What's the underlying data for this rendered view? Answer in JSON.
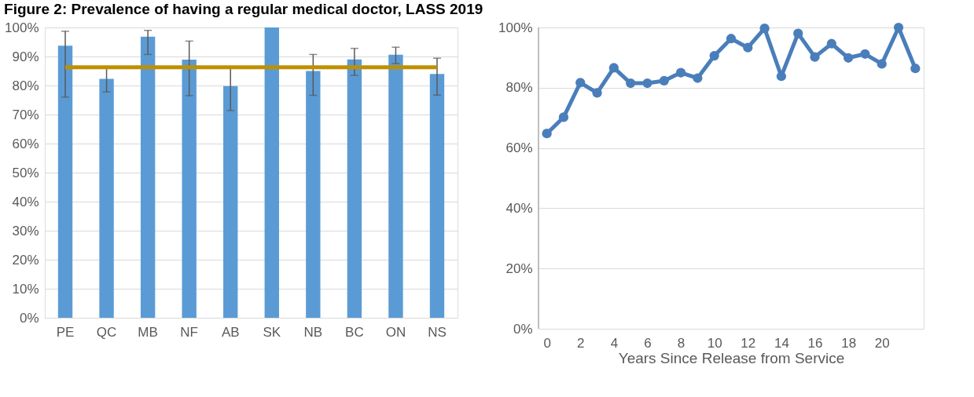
{
  "chart_data": [
    {
      "type": "bar",
      "title": "Figure 2: Prevalence of having a regular medical doctor, LASS 2019",
      "categories": [
        "PE",
        "QC",
        "MB",
        "NF",
        "AB",
        "SK",
        "NB",
        "BC",
        "ON",
        "NS"
      ],
      "series": [
        {
          "color": "#5b9bd5",
          "values": [
            93.7,
            82.3,
            96.8,
            88.9,
            79.8,
            100,
            85,
            89,
            90.6,
            84
          ],
          "errors": [
            [
              76,
              98.7
            ],
            [
              77.8,
              86
            ],
            [
              90.7,
              99
            ],
            [
              76.5,
              95.3
            ],
            [
              71.4,
              86
            ],
            null,
            [
              76.6,
              90.7
            ],
            [
              83.5,
              92.8
            ],
            [
              87.6,
              93.2
            ],
            [
              76.7,
              89.4
            ]
          ]
        }
      ],
      "ylim": [
        0,
        100
      ],
      "yticks": [
        {
          "value": 0,
          "label": "0%"
        },
        {
          "value": 10,
          "label": "10%"
        },
        {
          "value": 20,
          "label": "20%"
        },
        {
          "value": 30,
          "label": "30%"
        },
        {
          "value": 40,
          "label": "40%"
        },
        {
          "value": 50,
          "label": "50%"
        },
        {
          "value": 60,
          "label": "60%"
        },
        {
          "value": 70,
          "label": "70%"
        },
        {
          "value": 80,
          "label": "80%"
        },
        {
          "value": 90,
          "label": "90%"
        },
        {
          "value": 100,
          "label": "100%"
        }
      ],
      "ref_lines": [
        {
          "axis": "y",
          "value": 86.3,
          "color": "#bf9000"
        }
      ],
      "grid": "y"
    },
    {
      "type": "line",
      "xlabel": "Years Since Release from Service",
      "x": [
        0,
        1,
        2,
        3,
        4,
        5,
        6,
        7,
        8,
        9,
        10,
        11,
        12,
        13,
        14,
        15,
        16,
        17,
        18,
        19,
        20,
        21,
        22
      ],
      "series": [
        {
          "color": "#4a7ebb",
          "values": [
            64.8,
            70.2,
            81.7,
            78.3,
            86.6,
            81.5,
            81.5,
            82.3,
            85.0,
            83.2,
            90.6,
            96.3,
            93.3,
            99.7,
            83.8,
            98.0,
            90.2,
            94.6,
            89.9,
            91.2,
            87.9,
            100,
            86.4
          ]
        }
      ],
      "xlim": [
        -0.5,
        22.5
      ],
      "xticks": [
        0,
        2,
        4,
        6,
        8,
        10,
        12,
        14,
        16,
        18,
        20
      ],
      "ylim": [
        0,
        100
      ],
      "yticks": [
        {
          "value": 0,
          "label": "0%"
        },
        {
          "value": 20,
          "label": "20%"
        },
        {
          "value": 40,
          "label": "40%"
        },
        {
          "value": 60,
          "label": "60%"
        },
        {
          "value": 80,
          "label": "80%"
        },
        {
          "value": 100,
          "label": "100%"
        }
      ],
      "grid": "y",
      "marker": "circle",
      "line_style": "solid"
    }
  ]
}
